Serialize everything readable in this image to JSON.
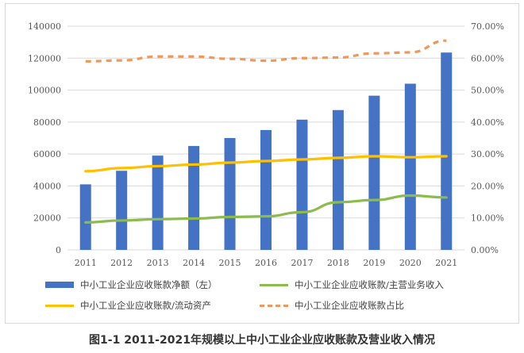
{
  "caption": "图1-1 2011-2021年规模以上中小工业企业应收账款及营业收入情况",
  "colors": {
    "bar": "#4472c4",
    "ratio_revenue": "#8cbb4e",
    "ratio_assets": "#ffc000",
    "share": "#f0975a",
    "grid": "#d9d9d9"
  },
  "chart_data": {
    "type": "bar",
    "title": "",
    "xlabel": "",
    "ylabel": "",
    "categories": [
      "2011",
      "2012",
      "2013",
      "2014",
      "2015",
      "2016",
      "2017",
      "2018",
      "2019",
      "2020",
      "2021"
    ],
    "ylim": [
      0,
      140000
    ],
    "yticks": [
      "0",
      "20000",
      "40000",
      "60000",
      "80000",
      "100000",
      "120000",
      "140000"
    ],
    "y2lim": [
      0,
      70
    ],
    "y2ticks": [
      "0.00%",
      "10.00%",
      "20.00%",
      "30.00%",
      "40.00%",
      "50.00%",
      "60.00%",
      "70.00%"
    ],
    "grid": true,
    "legend_position": "bottom",
    "series": [
      {
        "name": "中小工业企业应收账款净额（左）",
        "type": "bar",
        "axis": "left",
        "values": [
          41000,
          49500,
          59000,
          65000,
          70000,
          75000,
          81500,
          87500,
          96500,
          104000,
          123500
        ]
      },
      {
        "name": "中小工业企业应收账款/主营业务收入",
        "type": "line",
        "axis": "right",
        "style": "solid",
        "values": [
          8.6,
          9.2,
          9.6,
          9.8,
          10.3,
          10.5,
          11.8,
          14.9,
          15.6,
          17.0,
          16.4
        ]
      },
      {
        "name": "中小工业企业应收账款/流动资产",
        "type": "line",
        "axis": "right",
        "style": "solid",
        "values": [
          24.6,
          25.6,
          26.2,
          26.7,
          27.3,
          27.8,
          28.3,
          28.8,
          29.3,
          29.0,
          29.3
        ]
      },
      {
        "name": "中小工业企业应收账款占比",
        "type": "line",
        "axis": "right",
        "style": "dashed",
        "values": [
          59.0,
          59.3,
          60.5,
          60.5,
          59.8,
          59.2,
          60.0,
          60.2,
          61.5,
          61.8,
          65.5
        ]
      }
    ]
  }
}
